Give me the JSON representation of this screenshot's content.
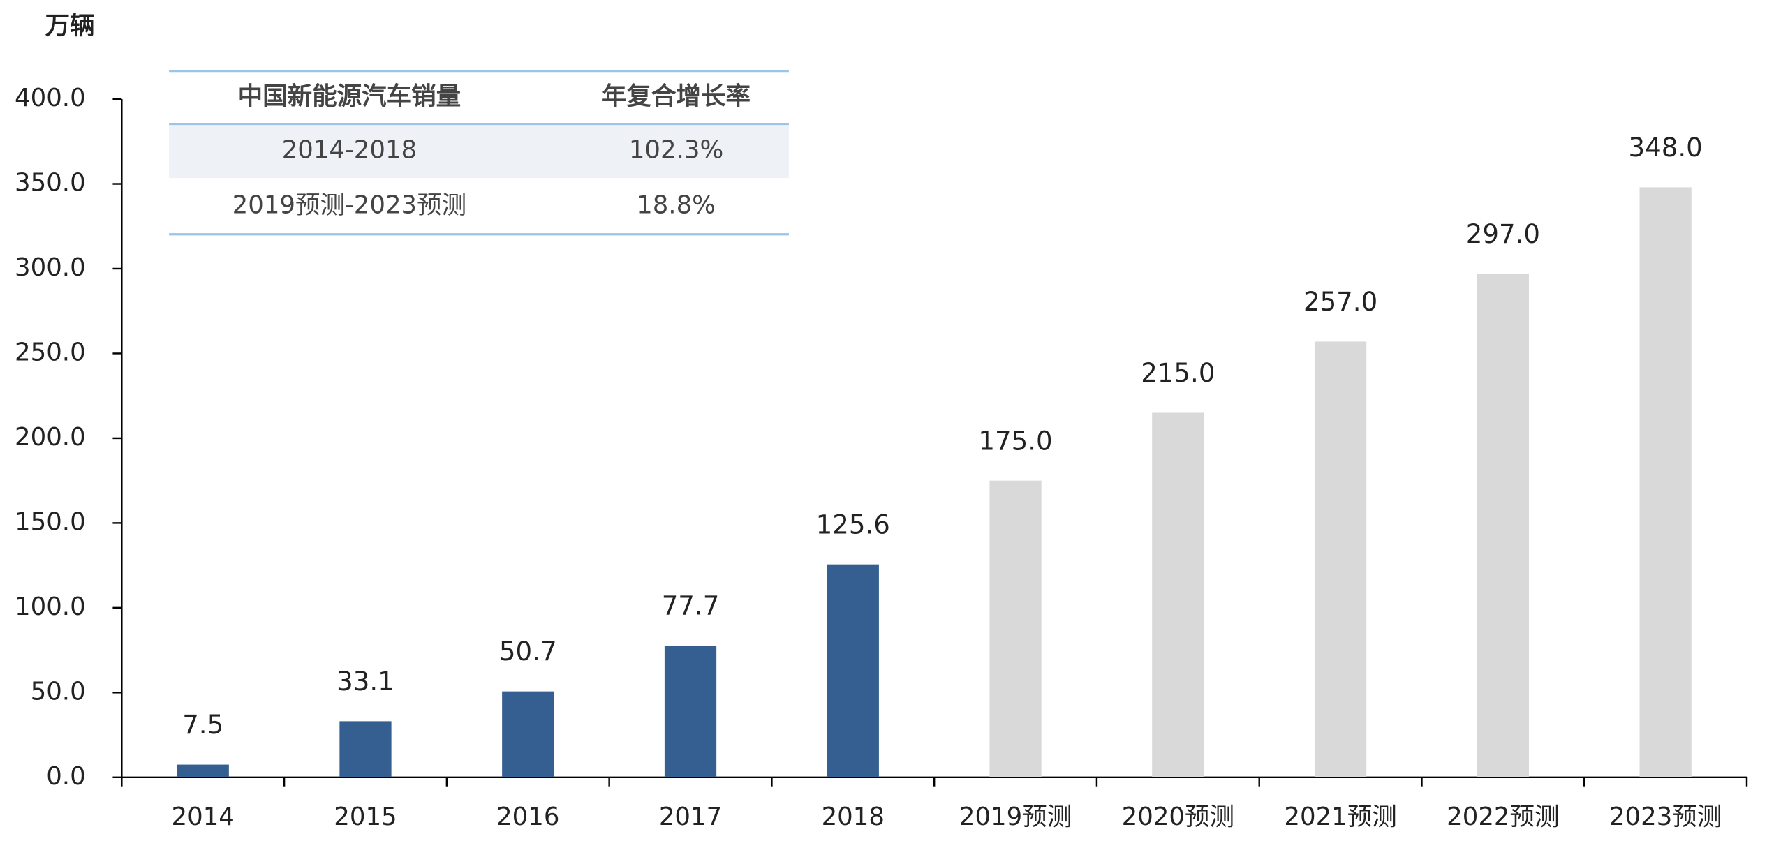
{
  "chart_data": {
    "type": "bar",
    "y_label": "万辆",
    "categories": [
      "2014",
      "2015",
      "2016",
      "2017",
      "2018",
      "2019预测",
      "2020预测",
      "2021预测",
      "2022预测",
      "2023预测"
    ],
    "values": [
      7.5,
      33.1,
      50.7,
      77.7,
      125.6,
      175,
      215,
      257,
      297,
      348
    ],
    "value_labels": [
      "7.5",
      "33.1",
      "50.7",
      "77.7",
      "125.6",
      "175.0",
      "215.0",
      "257.0",
      "297.0",
      "348.0"
    ],
    "colors": [
      "#365f91",
      "#365f91",
      "#365f91",
      "#365f91",
      "#365f91",
      "#d9d9d9",
      "#d9d9d9",
      "#d9d9d9",
      "#d9d9d9",
      "#d9d9d9"
    ],
    "ylim": [
      0,
      400
    ],
    "yticks": [
      {
        "value": 0,
        "label": "0.0"
      },
      {
        "value": 50,
        "label": "50.0"
      },
      {
        "value": 100,
        "label": "100.0"
      },
      {
        "value": 150,
        "label": "150.0"
      },
      {
        "value": 200,
        "label": "200.0"
      },
      {
        "value": 250,
        "label": "250.0"
      },
      {
        "value": 300,
        "label": "300.0"
      },
      {
        "value": 350,
        "label": "350.0"
      },
      {
        "value": 400,
        "label": "400.0"
      }
    ],
    "grid": false,
    "table": {
      "header": [
        "中国新能源汽车销量",
        "年复合增长率"
      ],
      "rows": [
        [
          "2014-2018",
          "102.3%"
        ],
        [
          "2019预测-2023预测",
          "18.8%"
        ]
      ]
    }
  }
}
